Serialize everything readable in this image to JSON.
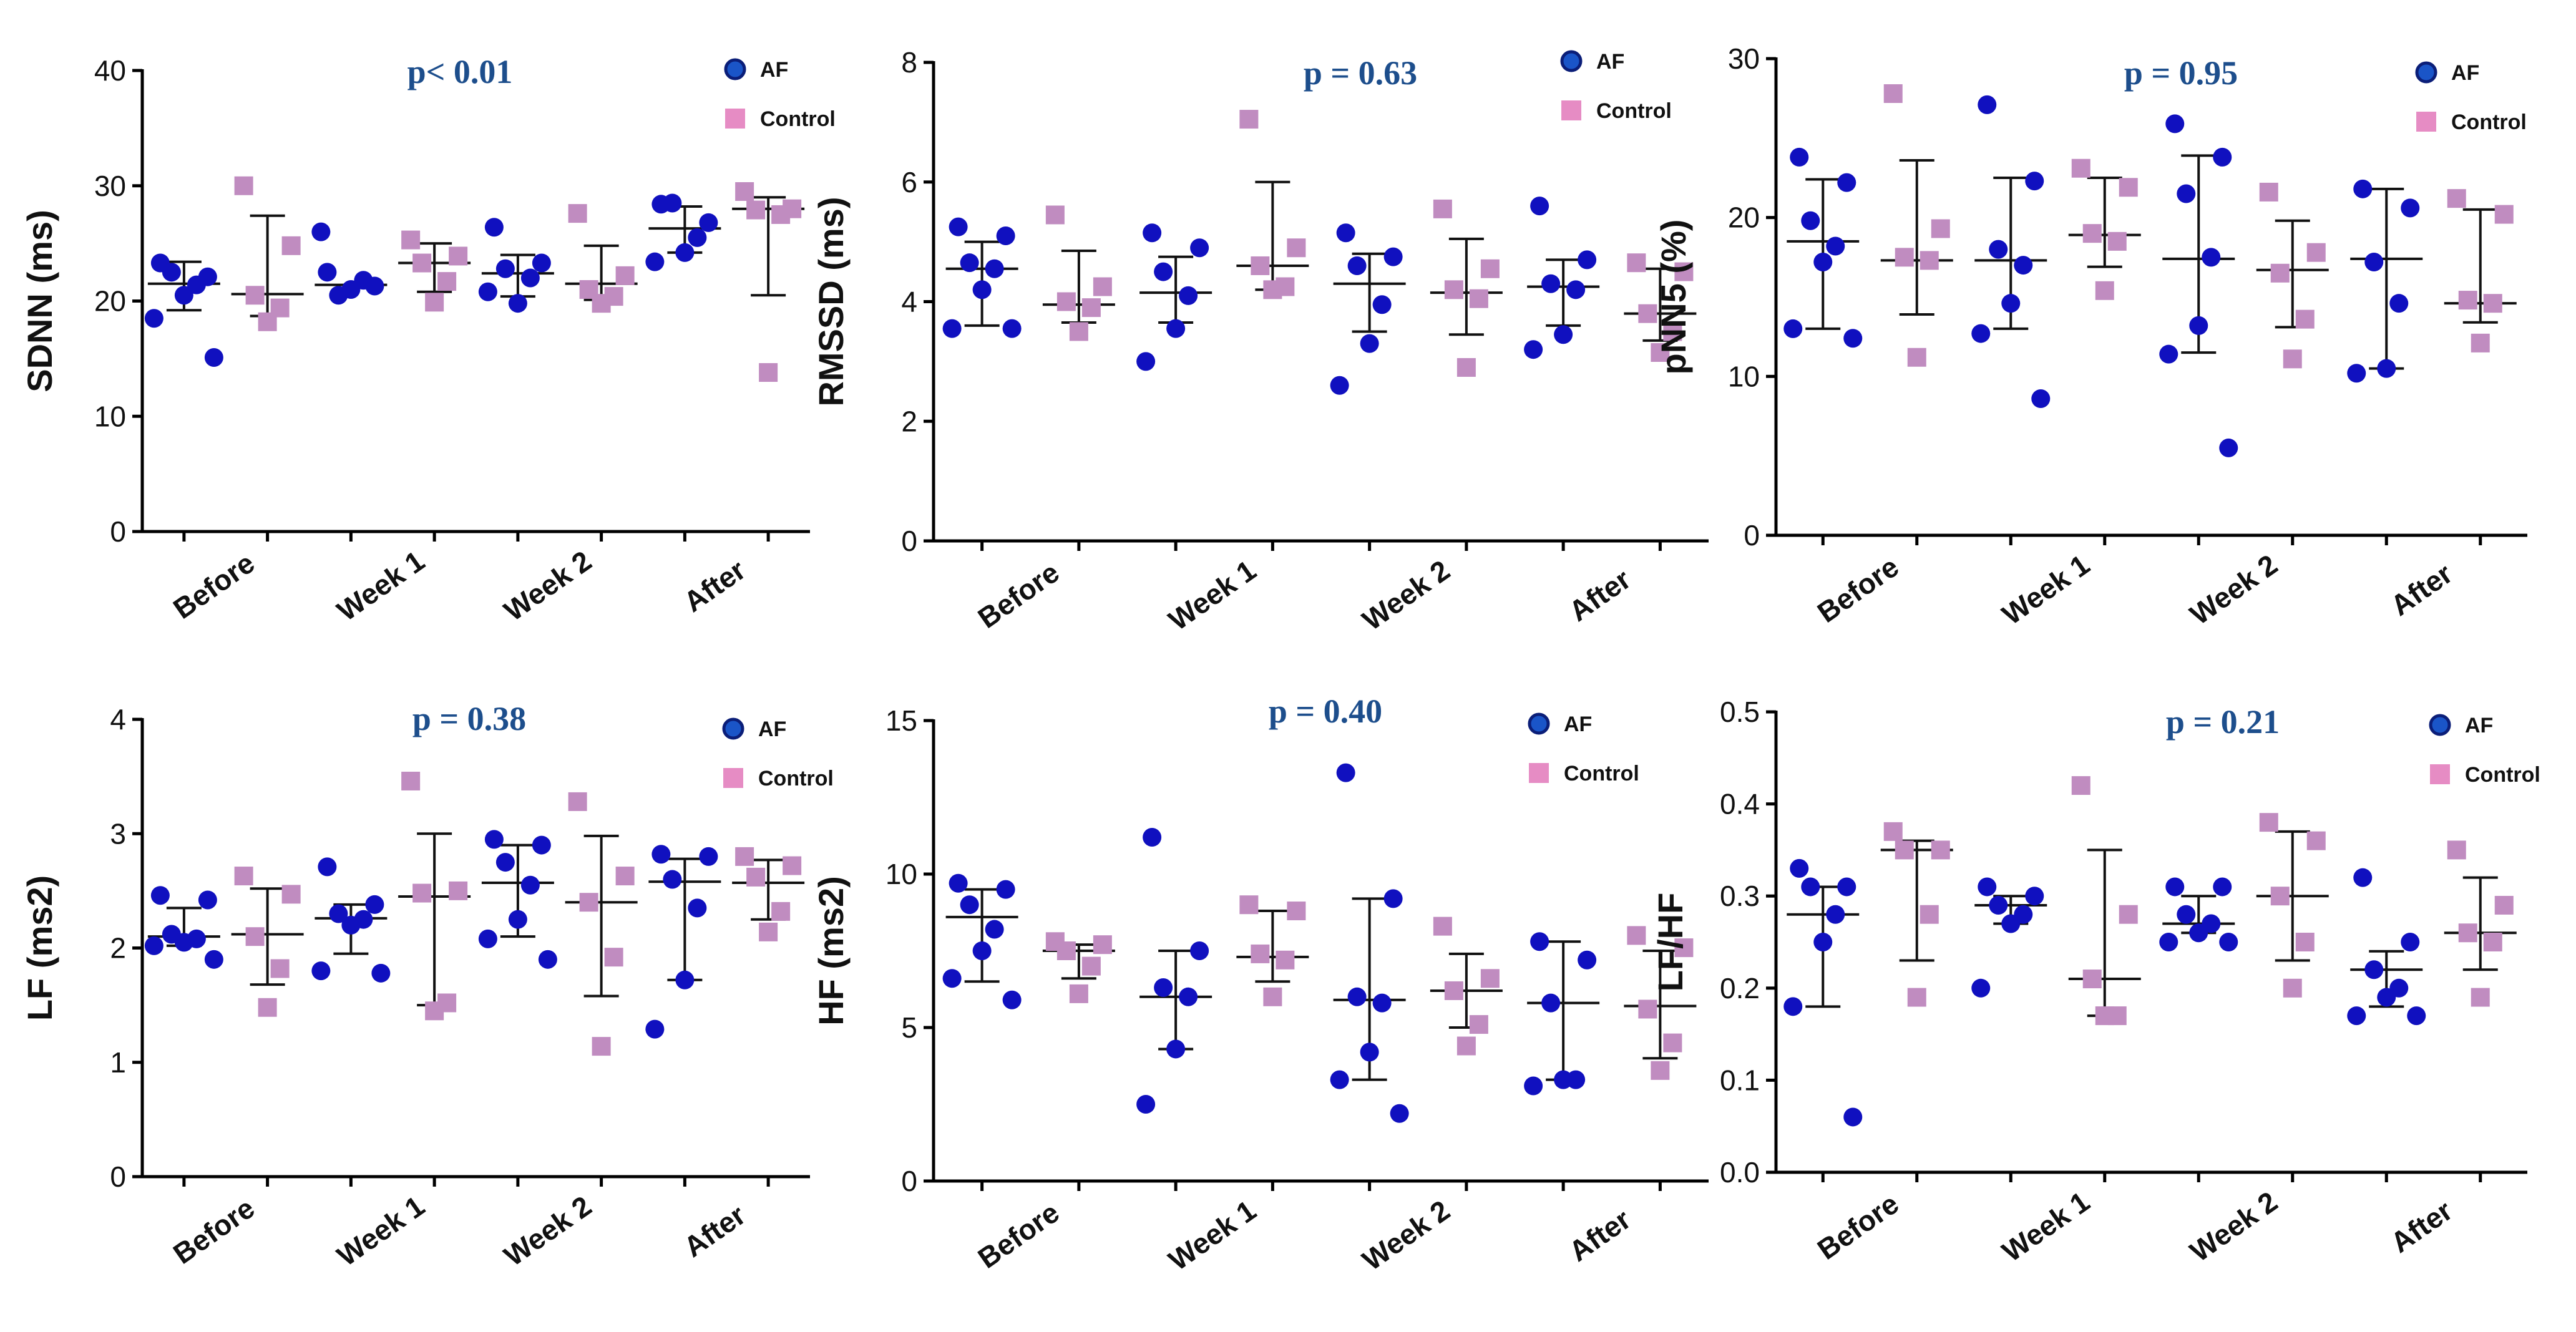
{
  "colors": {
    "af": "#1010bf",
    "af_legend_fill": "#1a55c8",
    "af_legend_stroke": "#0b1e78",
    "control": "#c08cc0",
    "control_legend": "#e68cc4",
    "pval": "#1d4e8c",
    "axis": "#000000"
  },
  "chart_data": [
    {
      "type": "scatter",
      "name": "SDNN",
      "ylabel": "SDNN (ms)",
      "ylim": [
        0,
        40
      ],
      "yticks": [
        0,
        10,
        20,
        30,
        40
      ],
      "categories": [
        "Before",
        "Week 1",
        "Week 2",
        "After"
      ],
      "pvalue": "p< 0.01",
      "legend": [
        "AF",
        "Control"
      ],
      "series": [
        {
          "name": "AF",
          "points": [
            [
              23.3,
              22.1,
              22.5,
              21.4,
              20.5,
              18.5,
              15.1
            ],
            [
              22.5,
              21.3,
              20.5,
              21.8,
              21.0,
              26.0
            ],
            [
              26.4,
              23.3,
              22.8,
              22.0,
              19.8,
              20.8
            ],
            [
              28.4,
              26.8,
              28.5,
              25.5,
              24.2,
              23.4
            ]
          ],
          "summary": [
            [
              21.5,
              19.2,
              23.4
            ],
            [
              21.4,
              null,
              null
            ],
            [
              22.4,
              20.4,
              24.0
            ],
            [
              26.3,
              24.2,
              28.2
            ]
          ]
        },
        {
          "name": "Control",
          "points": [
            [
              30.0,
              24.8,
              20.5,
              19.4,
              18.2
            ],
            [
              25.3,
              23.9,
              23.3,
              21.7,
              19.9
            ],
            [
              27.6,
              22.2,
              21.0,
              20.4,
              19.8
            ],
            [
              29.5,
              28.0,
              27.9,
              27.5,
              13.8
            ]
          ],
          "summary": [
            [
              20.6,
              18.7,
              27.4
            ],
            [
              23.3,
              20.8,
              25.0
            ],
            [
              21.5,
              20.1,
              24.8
            ],
            [
              28.0,
              20.5,
              29.0
            ]
          ]
        }
      ]
    },
    {
      "type": "scatter",
      "name": "RMSSD",
      "ylabel": "RMSSD (ms)",
      "ylim": [
        0,
        8
      ],
      "yticks": [
        0,
        2,
        4,
        6,
        8
      ],
      "categories": [
        "Before",
        "Week 1",
        "Week 2",
        "After"
      ],
      "pvalue": "p = 0.63",
      "legend": [
        "AF",
        "Control"
      ],
      "series": [
        {
          "name": "AF",
          "points": [
            [
              5.25,
              5.1,
              4.65,
              4.55,
              4.2,
              3.55,
              3.55
            ],
            [
              5.15,
              4.9,
              4.5,
              4.1,
              3.55,
              3.0
            ],
            [
              5.15,
              4.75,
              4.6,
              3.95,
              3.3,
              2.6
            ],
            [
              5.6,
              4.7,
              4.3,
              4.2,
              3.45,
              3.2
            ]
          ],
          "summary": [
            [
              4.55,
              3.6,
              5.0
            ],
            [
              4.15,
              3.65,
              4.75
            ],
            [
              4.3,
              3.5,
              4.8
            ],
            [
              4.25,
              3.6,
              4.7
            ]
          ]
        },
        {
          "name": "Control",
          "points": [
            [
              5.45,
              4.25,
              4.0,
              3.9,
              3.5
            ],
            [
              7.05,
              4.9,
              4.6,
              4.25,
              4.2
            ],
            [
              5.55,
              4.55,
              4.2,
              4.05,
              2.9
            ],
            [
              4.65,
              4.5,
              3.8,
              3.5,
              3.15
            ]
          ],
          "summary": [
            [
              3.95,
              3.65,
              4.85
            ],
            [
              4.6,
              4.2,
              6.0
            ],
            [
              4.15,
              3.45,
              5.05
            ],
            [
              3.8,
              3.35,
              4.55
            ]
          ]
        }
      ]
    },
    {
      "type": "scatter",
      "name": "pNN5",
      "ylabel": "pNN5 (%)",
      "ylim": [
        0,
        30
      ],
      "yticks": [
        0,
        10,
        20,
        30
      ],
      "categories": [
        "Before",
        "Week 1",
        "Week 2",
        "After"
      ],
      "pvalue": "p = 0.95",
      "legend": [
        "AF",
        "Control"
      ],
      "series": [
        {
          "name": "AF",
          "points": [
            [
              23.8,
              22.2,
              19.8,
              18.2,
              17.2,
              13.0,
              12.4
            ],
            [
              27.1,
              22.3,
              18.0,
              17.0,
              14.6,
              12.7,
              8.6
            ],
            [
              25.9,
              23.8,
              21.5,
              17.5,
              13.2,
              11.4,
              5.5
            ],
            [
              21.8,
              20.6,
              17.2,
              14.6,
              10.5,
              10.2
            ]
          ],
          "summary": [
            [
              18.5,
              13.0,
              22.4
            ],
            [
              17.3,
              13.0,
              22.5
            ],
            [
              17.4,
              11.5,
              23.9
            ],
            [
              17.4,
              10.5,
              21.8
            ]
          ]
        },
        {
          "name": "Control",
          "points": [
            [
              27.8,
              19.3,
              17.5,
              17.3,
              11.2
            ],
            [
              23.1,
              21.9,
              19.0,
              18.5,
              15.4
            ],
            [
              21.6,
              17.8,
              16.5,
              13.6,
              11.1
            ],
            [
              21.2,
              20.2,
              14.8,
              14.6,
              12.1
            ]
          ],
          "summary": [
            [
              17.3,
              13.9,
              23.6
            ],
            [
              18.9,
              16.9,
              22.5
            ],
            [
              16.7,
              13.1,
              19.8
            ],
            [
              14.6,
              13.4,
              20.5
            ]
          ]
        }
      ]
    },
    {
      "type": "scatter",
      "name": "LF",
      "ylabel": "LF (ms2)",
      "ylim": [
        0,
        4
      ],
      "yticks": [
        0,
        1,
        2,
        3,
        4
      ],
      "categories": [
        "Before",
        "Week 1",
        "Week 2",
        "After"
      ],
      "pvalue": "p = 0.38",
      "legend": [
        "AF",
        "Control"
      ],
      "series": [
        {
          "name": "AF",
          "points": [
            [
              2.46,
              2.42,
              2.12,
              2.08,
              2.05,
              2.02,
              1.9
            ],
            [
              2.71,
              2.38,
              2.3,
              2.25,
              2.2,
              1.8,
              1.78
            ],
            [
              2.95,
              2.9,
              2.75,
              2.55,
              2.25,
              2.08,
              1.9
            ],
            [
              2.82,
              2.8,
              2.6,
              2.35,
              1.72,
              1.29
            ]
          ],
          "summary": [
            [
              2.1,
              2.02,
              2.35
            ],
            [
              2.26,
              1.95,
              2.38
            ],
            [
              2.57,
              2.1,
              2.9
            ],
            [
              2.58,
              1.72,
              2.78
            ]
          ]
        },
        {
          "name": "Control",
          "points": [
            [
              2.63,
              2.47,
              2.1,
              1.82,
              1.48
            ],
            [
              3.46,
              2.5,
              2.48,
              1.52,
              1.45
            ],
            [
              3.28,
              2.63,
              2.4,
              1.92,
              1.14
            ],
            [
              2.8,
              2.72,
              2.62,
              2.32,
              2.14
            ]
          ],
          "summary": [
            [
              2.12,
              1.68,
              2.52
            ],
            [
              2.45,
              1.5,
              3.0
            ],
            [
              2.4,
              1.58,
              2.98
            ],
            [
              2.57,
              2.25,
              2.77
            ]
          ]
        }
      ]
    },
    {
      "type": "scatter",
      "name": "HF",
      "ylabel": "HF (ms2)",
      "ylim": [
        0,
        15
      ],
      "yticks": [
        0,
        5,
        10,
        15
      ],
      "categories": [
        "Before",
        "Week 1",
        "Week 2",
        "After"
      ],
      "pvalue": "p = 0.40",
      "legend": [
        "AF",
        "Control"
      ],
      "series": [
        {
          "name": "AF",
          "points": [
            [
              9.7,
              9.5,
              9.0,
              8.2,
              7.5,
              6.6,
              5.9
            ],
            [
              11.2,
              7.5,
              6.3,
              6.0,
              4.3,
              2.5
            ],
            [
              13.3,
              9.2,
              6.0,
              5.8,
              4.2,
              3.3,
              2.2
            ],
            [
              7.8,
              7.2,
              5.8,
              3.3,
              3.3,
              3.1
            ]
          ],
          "summary": [
            [
              8.6,
              6.5,
              9.5
            ],
            [
              6.0,
              4.3,
              7.5
            ],
            [
              5.9,
              3.3,
              9.2
            ],
            [
              5.8,
              3.3,
              7.8
            ]
          ]
        },
        {
          "name": "Control",
          "points": [
            [
              7.8,
              7.7,
              7.5,
              7.0,
              6.1
            ],
            [
              9.0,
              8.8,
              7.4,
              7.2,
              6.0
            ],
            [
              8.3,
              6.6,
              6.2,
              5.1,
              4.4
            ],
            [
              8.0,
              7.6,
              5.6,
              4.5,
              3.6
            ]
          ],
          "summary": [
            [
              7.5,
              6.6,
              7.7
            ],
            [
              7.3,
              6.5,
              8.8
            ],
            [
              6.2,
              5.0,
              7.4
            ],
            [
              5.7,
              4.0,
              7.5
            ]
          ]
        }
      ]
    },
    {
      "type": "scatter",
      "name": "LF/HF",
      "ylabel": "LF/HF",
      "ylim": [
        0.0,
        0.5
      ],
      "yticks": [
        "0.0",
        "0.1",
        "0.2",
        "0.3",
        "0.4",
        "0.5"
      ],
      "categories": [
        "Before",
        "Week 1",
        "Week 2",
        "After"
      ],
      "pvalue": "p = 0.21",
      "legend": [
        "AF",
        "Control"
      ],
      "series": [
        {
          "name": "AF",
          "points": [
            [
              0.33,
              0.31,
              0.31,
              0.28,
              0.25,
              0.18,
              0.06
            ],
            [
              0.31,
              0.3,
              0.29,
              0.28,
              0.27,
              0.2
            ],
            [
              0.31,
              0.31,
              0.28,
              0.27,
              0.26,
              0.25,
              0.25
            ],
            [
              0.32,
              0.25,
              0.22,
              0.2,
              0.19,
              0.17,
              0.17
            ]
          ],
          "summary": [
            [
              0.28,
              0.18,
              0.31
            ],
            [
              0.29,
              0.27,
              0.3
            ],
            [
              0.27,
              0.26,
              0.3
            ],
            [
              0.22,
              0.18,
              0.24
            ]
          ]
        },
        {
          "name": "Control",
          "points": [
            [
              0.37,
              0.35,
              0.35,
              0.28,
              0.19
            ],
            [
              0.42,
              0.28,
              0.21,
              0.17,
              0.17
            ],
            [
              0.38,
              0.36,
              0.3,
              0.25,
              0.2
            ],
            [
              0.35,
              0.29,
              0.26,
              0.25,
              0.19
            ]
          ],
          "summary": [
            [
              0.35,
              0.23,
              0.36
            ],
            [
              0.21,
              0.17,
              0.35
            ],
            [
              0.3,
              0.23,
              0.37
            ],
            [
              0.26,
              0.22,
              0.32
            ]
          ]
        }
      ]
    }
  ]
}
